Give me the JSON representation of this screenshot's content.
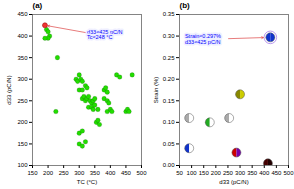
{
  "chart_data": [
    {
      "type": "scatter",
      "title": "(a)",
      "xlabel": "TC (°C)",
      "ylabel": "d33 (pC/N)",
      "marker": "circle",
      "color": "#22dd00",
      "grid": false,
      "xlim": [
        150,
        500
      ],
      "ylim": [
        100,
        450
      ],
      "xticks": [
        150,
        200,
        250,
        300,
        350,
        400,
        450,
        500
      ],
      "yticks": [
        100,
        150,
        200,
        250,
        300,
        350,
        400,
        450
      ],
      "x": [
        195,
        200,
        205,
        200,
        190,
        225,
        230,
        290,
        295,
        300,
        305,
        310,
        300,
        310,
        320,
        325,
        310,
        315,
        320,
        325,
        330,
        335,
        340,
        345,
        350,
        330,
        340,
        345,
        350,
        360,
        355,
        360,
        365,
        380,
        385,
        390,
        380,
        390,
        395,
        390,
        400,
        405,
        420,
        430,
        450,
        455,
        460,
        470,
        300,
        310,
        320,
        300,
        310
      ],
      "values": [
        415,
        410,
        400,
        395,
        395,
        225,
        350,
        300,
        295,
        310,
        300,
        295,
        275,
        275,
        285,
        280,
        255,
        260,
        250,
        255,
        260,
        250,
        245,
        250,
        255,
        235,
        235,
        230,
        240,
        230,
        200,
        205,
        195,
        275,
        280,
        270,
        255,
        250,
        245,
        225,
        230,
        225,
        310,
        305,
        225,
        230,
        225,
        310,
        150,
        145,
        155,
        175,
        180
      ],
      "annotations": [
        {
          "text": "d33≈425 pC/N\nTc≈248 °C",
          "x": 190,
          "y": 425,
          "color": "#ee3333"
        }
      ]
    },
    {
      "type": "scatter",
      "title": "(b)",
      "xlabel": "d33 (pC/N)",
      "ylabel": "Strain (%)",
      "marker": "split_circle",
      "grid": false,
      "xlim": [
        50,
        500
      ],
      "ylim": [
        0,
        0.35
      ],
      "xticks": [
        50,
        100,
        150,
        200,
        250,
        300,
        350,
        400,
        450,
        500
      ],
      "yticks": [
        {
          "value": 0,
          "label": "0.00"
        },
        0.05,
        {
          "value": 0.1,
          "label": "0.10"
        },
        0.15,
        {
          "value": 0.2,
          "label": "0.20"
        },
        0.25,
        {
          "value": 0.3,
          "label": "0.30"
        },
        0.35
      ],
      "points": [
        {
          "x": 425,
          "y": 0.297,
          "left_color": "#1133cc",
          "right_color": "#1133cc",
          "ring": "#bb99ee"
        },
        {
          "x": 415,
          "y": 0.005,
          "left_color": "#440000",
          "right_color": "#220000",
          "ring": null
        },
        {
          "x": 285,
          "y": 0.03,
          "left_color": "#cc0000",
          "right_color": "#7700aa",
          "ring": null
        },
        {
          "x": 255,
          "y": 0.11,
          "left_color": "#aaaaaa",
          "right_color": "#ffffff",
          "ring": null
        },
        {
          "x": 175,
          "y": 0.1,
          "left_color": "#22aa22",
          "right_color": "#ffffff",
          "ring": null
        },
        {
          "x": 90,
          "y": 0.11,
          "left_color": "#aaaaaa",
          "right_color": "#ffffff",
          "ring": null
        },
        {
          "x": 90,
          "y": 0.04,
          "left_color": "#1133cc",
          "right_color": "#ffffff",
          "ring": null
        },
        {
          "x": 300,
          "y": 0.165,
          "left_color": "#888800",
          "right_color": "#cccc00",
          "ring": null
        }
      ],
      "annotations": [
        {
          "text": "Strain≈0.297%\nd33≈425 pC/N",
          "x": 425,
          "y": 0.297
        }
      ]
    }
  ]
}
